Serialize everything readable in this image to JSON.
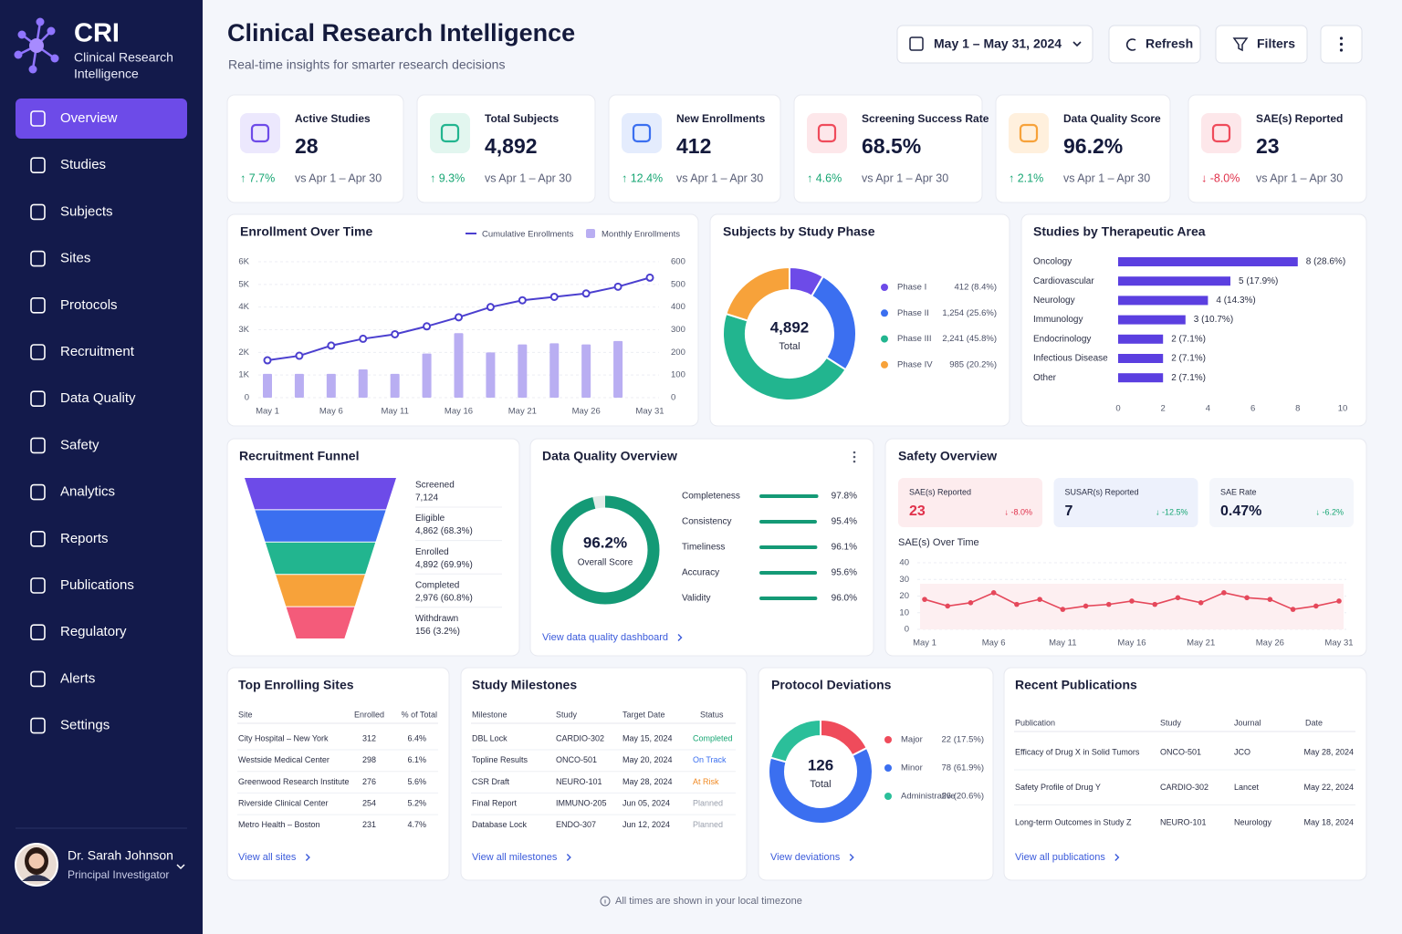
{
  "sidebar": {
    "logo": "CRI",
    "logo_subtitle": [
      "Clinical Research",
      "Intelligence"
    ],
    "nav": [
      "Overview",
      "Studies",
      "Subjects",
      "Sites",
      "Protocols",
      "Recruitment",
      "Data Quality",
      "Safety",
      "Analytics",
      "Reports",
      "Publications",
      "Regulatory",
      "Alerts",
      "Settings"
    ],
    "user": {
      "name": "Dr. Sarah Johnson",
      "role": "Principal Investigator"
    }
  },
  "header": {
    "title": "Clinical Research Intelligence",
    "subtitle": "Real-time insights for smarter research decisions",
    "date_range": "May 1 – May 31, 2024",
    "refresh": "Refresh",
    "filters": "Filters"
  },
  "kpis": [
    {
      "label": "Active Studies",
      "value": "28",
      "change": "↑ 7.7%",
      "comparison": "vs Apr 1 – Apr 30"
    },
    {
      "label": "Total Subjects",
      "value": "4,892",
      "change": "↑ 9.3%",
      "comparison": "vs Apr 1 – Apr 30"
    },
    {
      "label": "New Enrollments",
      "value": "412",
      "change": "↑ 12.4%",
      "comparison": "vs Apr 1 – Apr 30"
    },
    {
      "label": "Screening Success Rate",
      "value": "68.5%",
      "change": "↑ 4.6%",
      "comparison": "vs Apr 1 – Apr 30"
    },
    {
      "label": "Data Quality Score",
      "value": "96.2%",
      "change": "↑ 2.1%",
      "comparison": "vs Apr 1 – Apr 30"
    },
    {
      "label": "SAE(s) Reported",
      "value": "23",
      "change": "↓ -8.0%",
      "comparison": "vs Apr 1 – Apr 30"
    }
  ],
  "chart_data": [
    {
      "type": "combo",
      "title": "Enrollment Over Time",
      "categories": [
        "May 1",
        null,
        "May 6",
        null,
        "May 11",
        null,
        "May 16",
        null,
        "May 21",
        null,
        "May 26",
        null,
        "May 31"
      ],
      "series": [
        {
          "name": "Cumulative Enrollments",
          "type": "line",
          "color": "#4b3fcf",
          "values": [
            1650,
            1850,
            2300,
            2600,
            2800,
            3150,
            3550,
            4000,
            4300,
            4450,
            4600,
            4900,
            5300
          ]
        },
        {
          "name": "Monthly Enrollments",
          "type": "bar",
          "color": "#b9aef2",
          "axis": "y2",
          "values": [
            105,
            105,
            105,
            125,
            105,
            195,
            285,
            200,
            235,
            240,
            235,
            250,
            null
          ]
        }
      ],
      "ylim": [
        0,
        6000
      ],
      "yticks": [
        0,
        {
          "value": 1000,
          "label": "1K"
        },
        {
          "value": 2000,
          "label": "2K"
        },
        {
          "value": 3000,
          "label": "3K"
        },
        {
          "value": 4000,
          "label": "4K"
        },
        {
          "value": 5000,
          "label": "5K"
        },
        {
          "value": 6000,
          "label": "6K"
        }
      ],
      "y2lim": [
        0,
        600
      ],
      "y2ticks": [
        0,
        100,
        200,
        300,
        400,
        500,
        600
      ],
      "grid": true
    },
    {
      "type": "donut",
      "title": "Subjects by Study Phase",
      "center_value": "4,892",
      "center_label": "Total",
      "categories": [
        "Phase I",
        "Phase II",
        "Phase III",
        "Phase IV"
      ],
      "values": [
        412,
        1254,
        2241,
        985
      ],
      "value_labels": [
        "412 (8.4%)",
        "1,254 (25.6%)",
        "2,241 (45.8%)",
        "985 (20.2%)"
      ],
      "colors": [
        "#6d4be8",
        "#3b6ff0",
        "#22b58f",
        "#f7a23a"
      ]
    },
    {
      "type": "hbar",
      "title": "Studies by Therapeutic Area",
      "categories": [
        "Oncology",
        "Cardiovascular",
        "Neurology",
        "Immunology",
        "Endocrinology",
        "Infectious Disease",
        "Other"
      ],
      "values": [
        8,
        5,
        4,
        3,
        2,
        2,
        2
      ],
      "value_labels": [
        "8 (28.6%)",
        "5 (17.9%)",
        "4 (14.3%)",
        "3 (10.7%)",
        "2 (7.1%)",
        "2 (7.1%)",
        "2 (7.1%)"
      ],
      "color": "#5b3fe0",
      "xlim": [
        0,
        10
      ],
      "xticks": [
        0,
        2,
        4,
        6,
        8,
        10
      ]
    },
    {
      "type": "funnel",
      "title": "Recruitment Funnel",
      "categories": [
        "Screened",
        "Eligible",
        "Enrolled",
        "Completed",
        "Withdrawn"
      ],
      "values": [
        7124,
        4862,
        4892,
        2976,
        156
      ],
      "value_labels": [
        "7,124",
        "4,862 (68.3%)",
        "4,892 (69.9%)",
        "2,976 (60.8%)",
        "156 (3.2%)"
      ],
      "colors": [
        "#6d4be8",
        "#3b6ff0",
        "#22b58f",
        "#f7a23a",
        "#f45b7a"
      ]
    },
    {
      "type": "quality",
      "title": "Data Quality Overview",
      "score": 96.2,
      "score_label": "96.2%",
      "score_caption": "Overall Score",
      "categories": [
        "Completeness",
        "Consistency",
        "Timeliness",
        "Accuracy",
        "Validity"
      ],
      "values": [
        97.8,
        95.4,
        96.1,
        95.6,
        96.0
      ],
      "value_labels": [
        "97.8%",
        "95.4%",
        "96.1%",
        "95.6%",
        "96.0%"
      ],
      "color": "#149a76",
      "xlim": [
        0,
        100
      ],
      "link": "View data quality dashboard"
    },
    {
      "type": "line",
      "title": "SAE(s) Over Time",
      "categories": [
        "May 1",
        null,
        null,
        "May 6",
        null,
        null,
        "May 11",
        null,
        null,
        "May 16",
        null,
        null,
        "May 21",
        null,
        null,
        "May 26",
        null,
        null,
        "May 31"
      ],
      "values": [
        18,
        14,
        16,
        22,
        15,
        18,
        12,
        14,
        15,
        17,
        15,
        19,
        16,
        22,
        19,
        18,
        12,
        14,
        17
      ],
      "color": "#e5485b",
      "ylim": [
        0,
        40
      ],
      "yticks": [
        0,
        10,
        20,
        30,
        40
      ],
      "grid": true
    },
    {
      "type": "donut",
      "title": "Protocol Deviations",
      "center_value": "126",
      "center_label": "Total",
      "categories": [
        "Major",
        "Minor",
        "Administrative"
      ],
      "values": [
        22,
        78,
        26
      ],
      "value_labels": [
        "22 (17.5%)",
        "78 (61.9%)",
        "26 (20.6%)"
      ],
      "colors": [
        "#ef4b5b",
        "#3b6ff0",
        "#2bbf9a"
      ],
      "link": "View deviations"
    }
  ],
  "safety_overview": {
    "title": "Safety Overview",
    "cards": [
      {
        "label": "SAE(s) Reported",
        "value": "23",
        "change": "↓ -8.0%"
      },
      {
        "label": "SUSAR(s) Reported",
        "value": "7",
        "change": "↓ -12.5%"
      },
      {
        "label": "SAE Rate",
        "value": "0.47%",
        "change": "↓ -6.2%"
      }
    ]
  },
  "tables": {
    "sites": {
      "title": "Top Enrolling Sites",
      "columns": [
        "Site",
        "Enrolled",
        "% of Total"
      ],
      "rows": [
        [
          "City Hospital – New York",
          "312",
          "6.4%"
        ],
        [
          "Westside Medical Center",
          "298",
          "6.1%"
        ],
        [
          "Greenwood Research Institute",
          "276",
          "5.6%"
        ],
        [
          "Riverside Clinical Center",
          "254",
          "5.2%"
        ],
        [
          "Metro Health – Boston",
          "231",
          "4.7%"
        ]
      ],
      "link": "View all sites"
    },
    "milestones": {
      "title": "Study Milestones",
      "columns": [
        "Milestone",
        "Study",
        "Target Date",
        "Status"
      ],
      "rows": [
        [
          "DBL Lock",
          "CARDIO-302",
          "May 15, 2024",
          "Completed"
        ],
        [
          "Topline Results",
          "ONCO-501",
          "May 20, 2024",
          "On Track"
        ],
        [
          "CSR Draft",
          "NEURO-101",
          "May 28, 2024",
          "At Risk"
        ],
        [
          "Final Report",
          "IMMUNO-205",
          "Jun 05, 2024",
          "Planned"
        ],
        [
          "Database Lock",
          "ENDO-307",
          "Jun 12, 2024",
          "Planned"
        ]
      ],
      "link": "View all milestones"
    },
    "publications": {
      "title": "Recent Publications",
      "columns": [
        "Publication",
        "Study",
        "Journal",
        "Date"
      ],
      "rows": [
        [
          "Efficacy of Drug X in Solid Tumors",
          "ONCO-501",
          "JCO",
          "May 28, 2024"
        ],
        [
          "Safety Profile of Drug Y",
          "CARDIO-302",
          "Lancet",
          "May 22, 2024"
        ],
        [
          "Long-term Outcomes in Study Z",
          "NEURO-101",
          "Neurology",
          "May 18, 2024"
        ]
      ],
      "link": "View all publications"
    }
  },
  "footer": "All times are shown in your local timezone"
}
